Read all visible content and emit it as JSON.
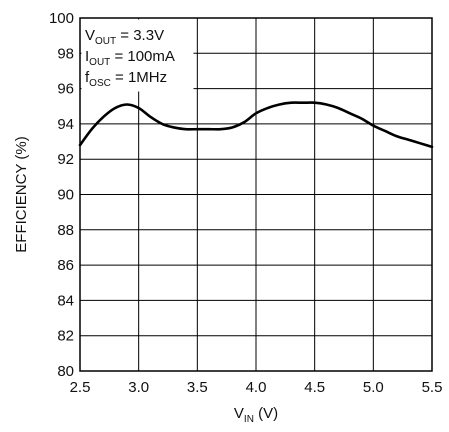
{
  "chart_data": {
    "type": "line",
    "xlabel": {
      "main": "V",
      "sub": "IN",
      "suffix": " (V)"
    },
    "ylabel": "EFFICIENCY (%)",
    "xlim": [
      2.5,
      5.5
    ],
    "ylim": [
      80,
      100
    ],
    "x_ticks": [
      2.5,
      3.0,
      3.5,
      4.0,
      4.5,
      5.0,
      5.5
    ],
    "x_tick_labels": [
      "2.5",
      "3.0",
      "3.5",
      "4.0",
      "4.5",
      "5.0",
      "5.5"
    ],
    "y_ticks": [
      80,
      82,
      84,
      86,
      88,
      90,
      92,
      94,
      96,
      98,
      100
    ],
    "y_tick_labels": [
      "80",
      "82",
      "84",
      "86",
      "88",
      "90",
      "92",
      "94",
      "96",
      "98",
      "100"
    ],
    "grid": true,
    "line_color": "#000000",
    "annotations": [
      {
        "main": "V",
        "sub": "OUT",
        "rest": " = 3.3V"
      },
      {
        "main": "I",
        "sub": "OUT",
        "rest": " = 100mA"
      },
      {
        "main": "f",
        "sub": "OSC",
        "rest": " = 1MHz"
      }
    ],
    "series": [
      {
        "x": [
          2.5,
          2.6,
          2.7,
          2.8,
          2.9,
          3.0,
          3.1,
          3.2,
          3.3,
          3.4,
          3.5,
          3.6,
          3.7,
          3.8,
          3.9,
          4.0,
          4.1,
          4.2,
          4.3,
          4.4,
          4.5,
          4.6,
          4.7,
          4.8,
          4.9,
          5.0,
          5.1,
          5.2,
          5.3,
          5.4,
          5.5
        ],
        "y": [
          92.8,
          93.7,
          94.4,
          94.9,
          95.1,
          94.9,
          94.4,
          94.0,
          93.8,
          93.7,
          93.7,
          93.7,
          93.7,
          93.8,
          94.1,
          94.6,
          94.9,
          95.1,
          95.2,
          95.2,
          95.2,
          95.1,
          94.9,
          94.6,
          94.3,
          93.9,
          93.6,
          93.3,
          93.1,
          92.9,
          92.7
        ]
      }
    ]
  }
}
